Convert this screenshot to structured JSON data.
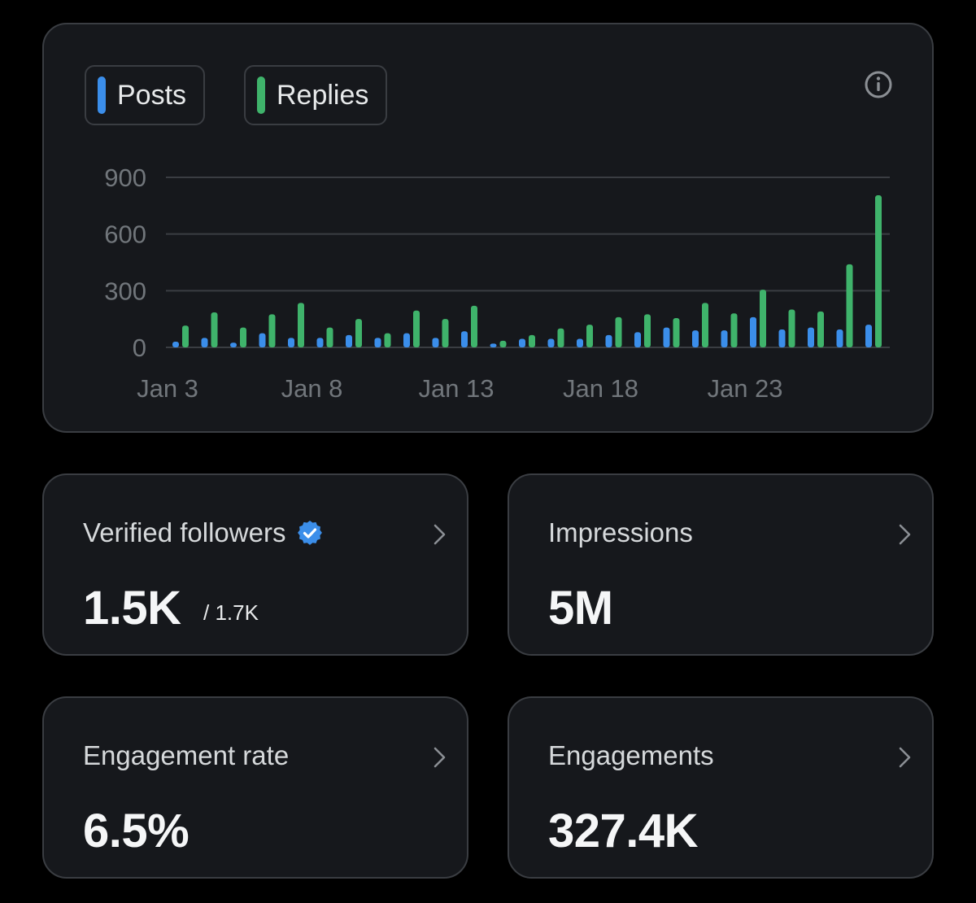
{
  "colors": {
    "posts": "#3b8eea",
    "replies": "#3fb36b",
    "verified_badge": "#3b8eea",
    "axis_text": "#71767b",
    "grid": "#3a3d42"
  },
  "icons": {
    "info": "info-icon",
    "chevron": "chevron-right-icon",
    "verified": "verified-badge-icon"
  },
  "legend": {
    "posts_label": "Posts",
    "replies_label": "Replies"
  },
  "chart_data": {
    "type": "bar",
    "title": "",
    "xlabel": "",
    "ylabel": "",
    "ylim": [
      0,
      900
    ],
    "yticks": [
      "0",
      "300",
      "600",
      "900"
    ],
    "ytick_values": [
      0,
      300,
      600,
      900
    ],
    "xtick_labels": [
      {
        "label": "Jan 3",
        "index": 0
      },
      {
        "label": "Jan 8",
        "index": 5
      },
      {
        "label": "Jan 13",
        "index": 10
      },
      {
        "label": "Jan 18",
        "index": 15
      },
      {
        "label": "Jan 23",
        "index": 20
      }
    ],
    "categories": [
      "Jan 3",
      "Jan 4",
      "Jan 5",
      "Jan 6",
      "Jan 7",
      "Jan 8",
      "Jan 9",
      "Jan 10",
      "Jan 11",
      "Jan 12",
      "Jan 13",
      "Jan 14",
      "Jan 15",
      "Jan 16",
      "Jan 17",
      "Jan 18",
      "Jan 19",
      "Jan 20",
      "Jan 21",
      "Jan 22",
      "Jan 23",
      "Jan 24",
      "Jan 25",
      "Jan 26",
      "Jan 27",
      "Jan 28"
    ],
    "series": [
      {
        "name": "Posts",
        "values": [
          30,
          50,
          25,
          75,
          50,
          50,
          65,
          50,
          75,
          50,
          85,
          20,
          45,
          45,
          45,
          65,
          80,
          105,
          90,
          90,
          160,
          95,
          105,
          95,
          120,
          0
        ]
      },
      {
        "name": "Replies",
        "values": [
          115,
          185,
          105,
          175,
          235,
          105,
          150,
          75,
          195,
          150,
          220,
          35,
          65,
          100,
          120,
          160,
          175,
          155,
          235,
          180,
          305,
          200,
          190,
          440,
          805,
          0
        ]
      }
    ]
  },
  "stats": {
    "verified": {
      "label": "Verified followers",
      "value": "1.5K",
      "sub": "/ 1.7K"
    },
    "impressions": {
      "label": "Impressions",
      "value": "5M"
    },
    "engagement_rate": {
      "label": "Engagement rate",
      "value": "6.5%"
    },
    "engagements": {
      "label": "Engagements",
      "value": "327.4K"
    }
  }
}
